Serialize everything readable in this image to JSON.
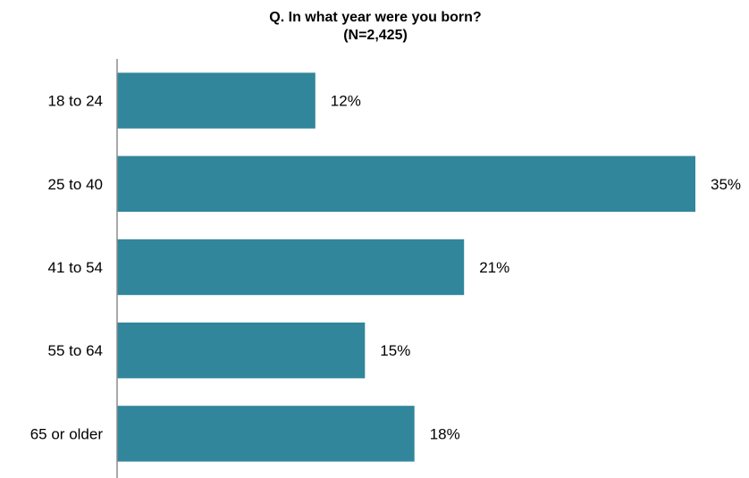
{
  "chart_data": {
    "type": "bar",
    "orientation": "horizontal",
    "title": "Q. In what year were you born?",
    "subtitle": "(N=2,425)",
    "xlabel": "",
    "ylabel": "",
    "categories": [
      "18 to 24",
      "25 to 40",
      "41 to 54",
      "55 to 64",
      "65 or older"
    ],
    "values": [
      12,
      35,
      21,
      15,
      18
    ],
    "value_labels": [
      "12%",
      "35%",
      "21%",
      "15%",
      "18%"
    ],
    "value_unit": "%",
    "xlim": [
      0,
      35
    ],
    "grid": false,
    "legend": "none",
    "colors": {
      "bar": "#31869B",
      "axis": "#8C8C8C",
      "text": "#000000"
    }
  }
}
